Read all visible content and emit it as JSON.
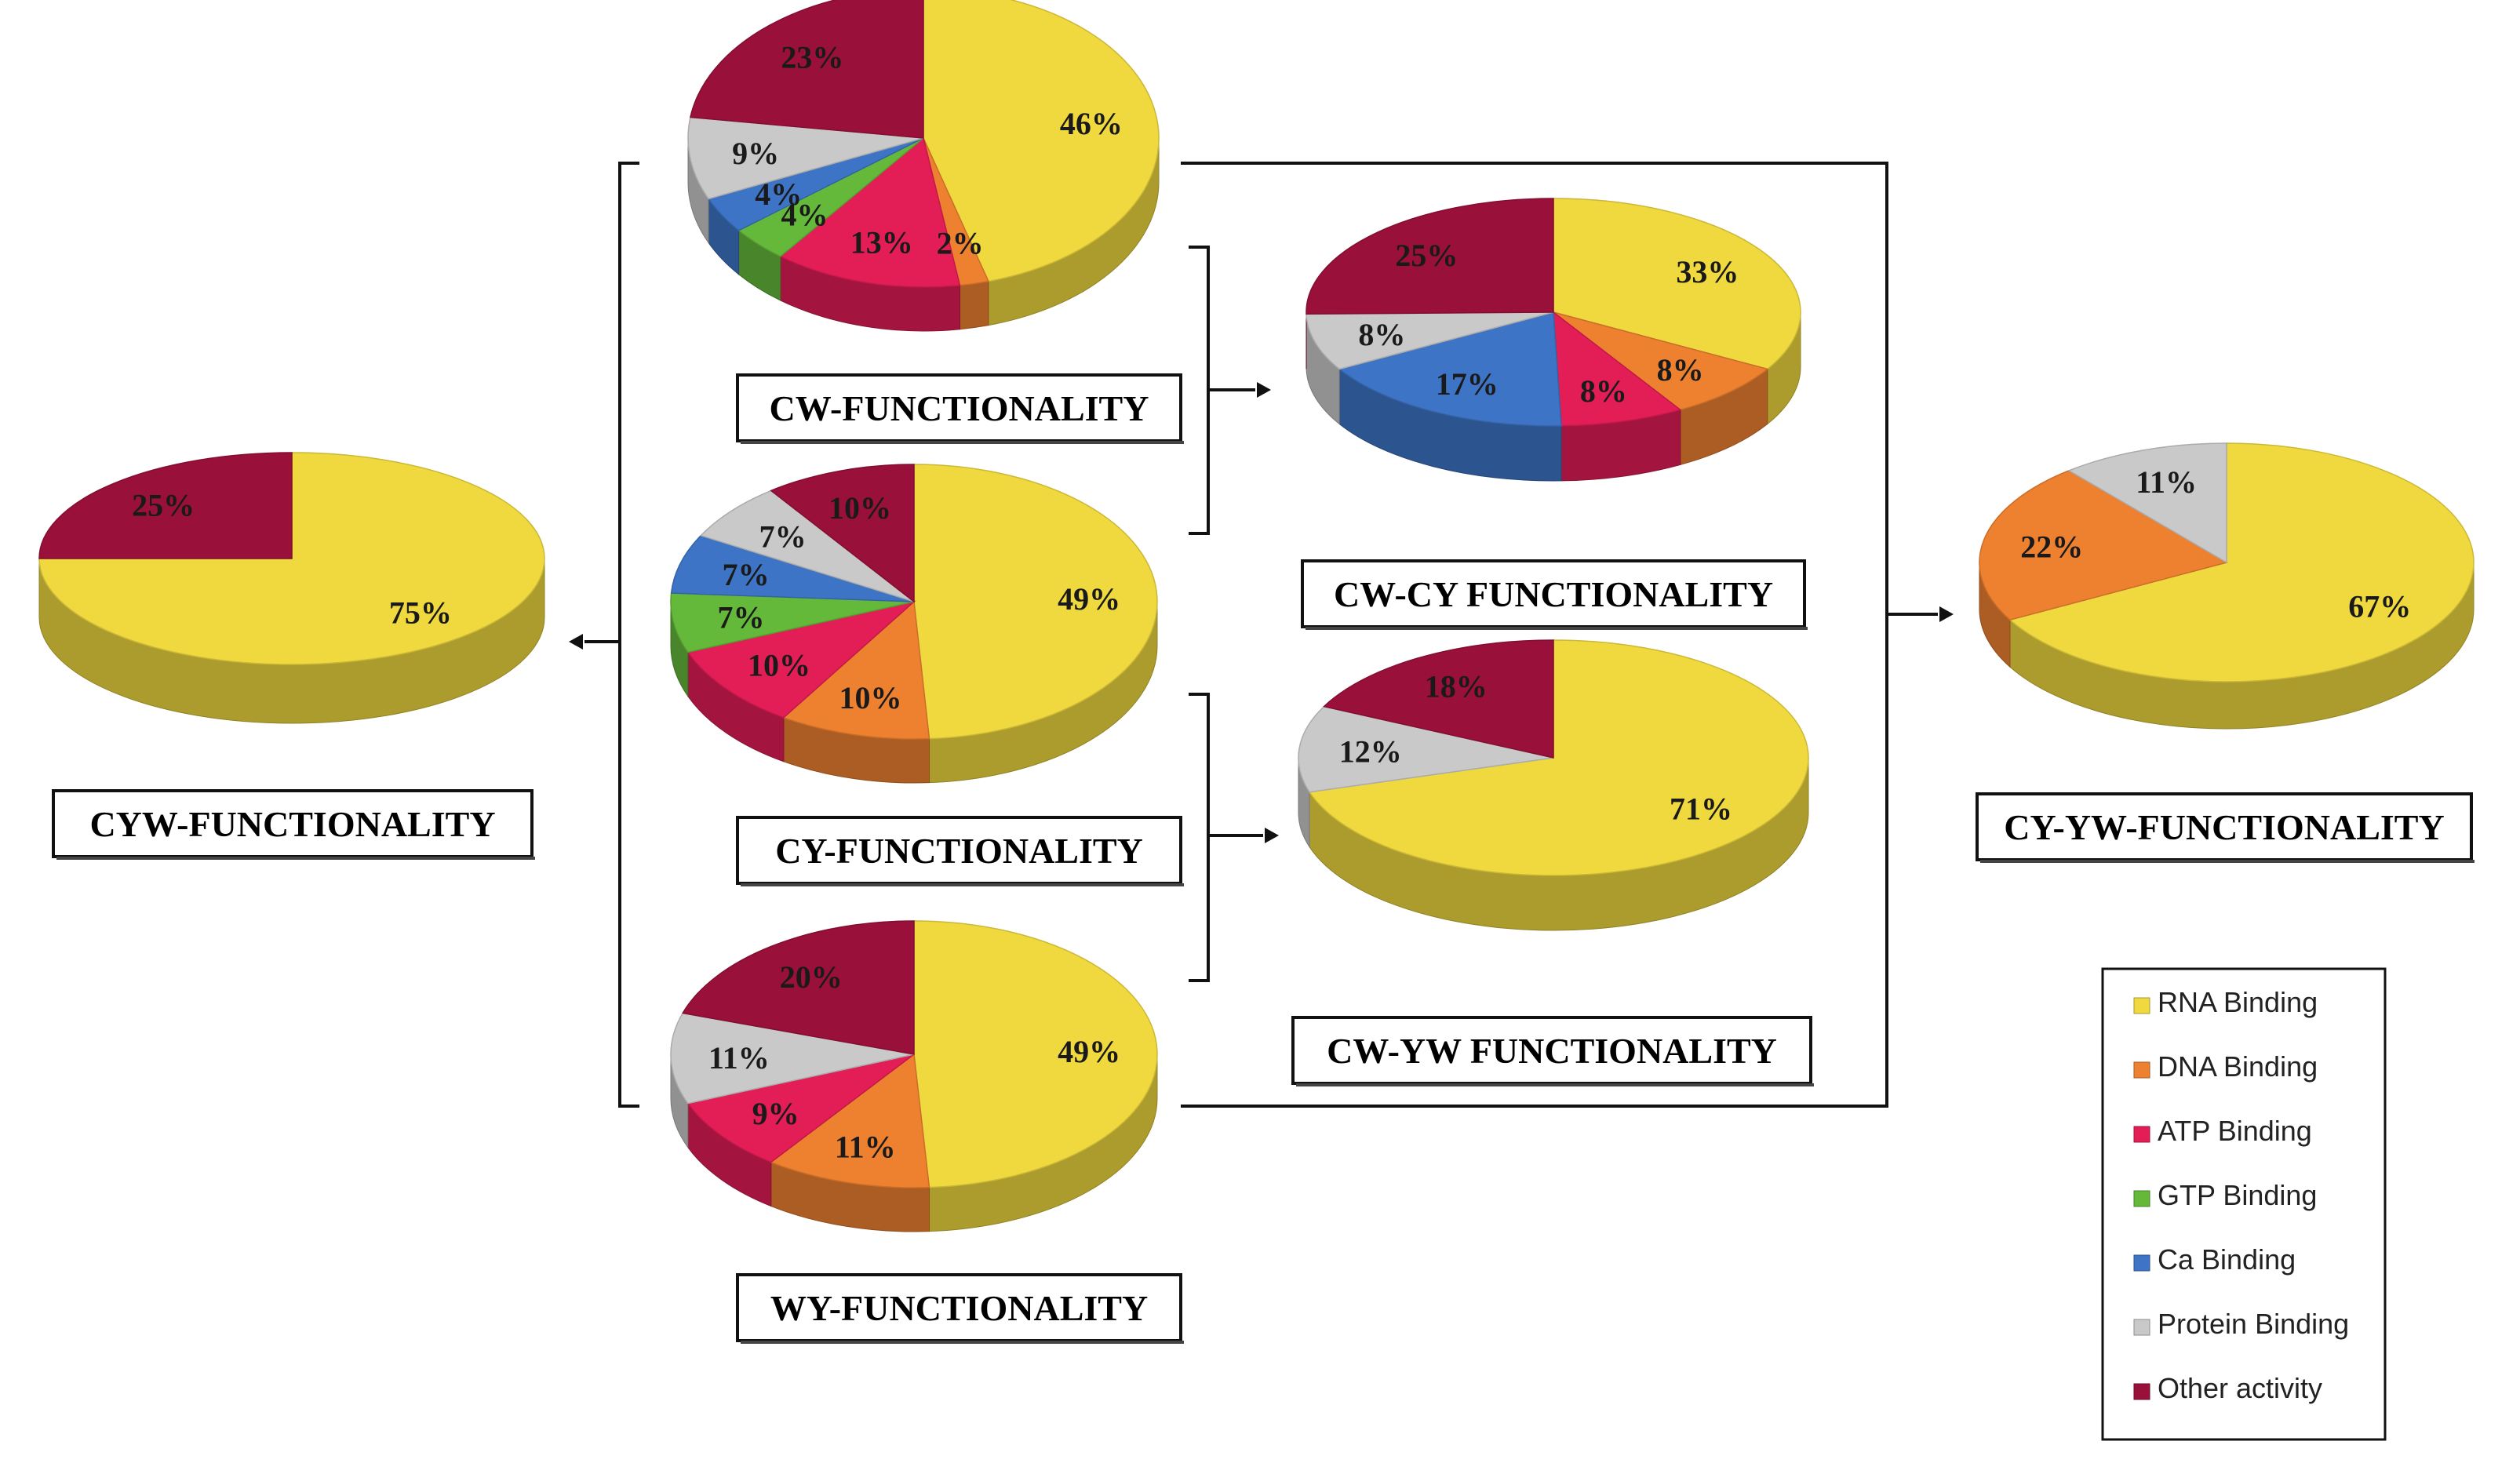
{
  "legend": [
    {
      "key": "rna",
      "label": "RNA Binding",
      "color": "#efd93f"
    },
    {
      "key": "dna",
      "label": "DNA Binding",
      "color": "#ee8130"
    },
    {
      "key": "atp",
      "label": "ATP Binding",
      "color": "#e31d56"
    },
    {
      "key": "gtp",
      "label": "GTP Binding",
      "color": "#65b93a"
    },
    {
      "key": "ca",
      "label": "Ca Binding",
      "color": "#3d74c5"
    },
    {
      "key": "protein",
      "label": "Protein Binding",
      "color": "#c9c9c9"
    },
    {
      "key": "other",
      "label": "Other activity",
      "color": "#99103a"
    }
  ],
  "chart_data": [
    {
      "id": "cw",
      "type": "pie",
      "title": "CW-FUNCTIONALITY",
      "slices": [
        {
          "key": "rna",
          "value": 46,
          "label": "46%"
        },
        {
          "key": "dna",
          "value": 2,
          "label": "2%"
        },
        {
          "key": "atp",
          "value": 13,
          "label": "13%"
        },
        {
          "key": "gtp",
          "value": 4,
          "label": "4%"
        },
        {
          "key": "ca",
          "value": 4,
          "label": "4%"
        },
        {
          "key": "protein",
          "value": 9,
          "label": "9%"
        },
        {
          "key": "other",
          "value": 23,
          "label": "23%"
        }
      ]
    },
    {
      "id": "cy",
      "type": "pie",
      "title": "CY-FUNCTIONALITY",
      "slices": [
        {
          "key": "rna",
          "value": 49,
          "label": "49%"
        },
        {
          "key": "dna",
          "value": 10,
          "label": "10%"
        },
        {
          "key": "atp",
          "value": 10,
          "label": "10%"
        },
        {
          "key": "gtp",
          "value": 7,
          "label": "7%"
        },
        {
          "key": "ca",
          "value": 7,
          "label": "7%"
        },
        {
          "key": "protein",
          "value": 7,
          "label": "7%"
        },
        {
          "key": "other",
          "value": 10,
          "label": "10%"
        }
      ]
    },
    {
      "id": "wy",
      "type": "pie",
      "title": "WY-FUNCTIONALITY",
      "slices": [
        {
          "key": "rna",
          "value": 49,
          "label": "49%"
        },
        {
          "key": "dna",
          "value": 11,
          "label": "11%"
        },
        {
          "key": "atp",
          "value": 9,
          "label": "9%"
        },
        {
          "key": "protein",
          "value": 11,
          "label": "11%"
        },
        {
          "key": "other",
          "value": 20,
          "label": "20%"
        }
      ]
    },
    {
      "id": "cwcy",
      "type": "pie",
      "title": "CW-CY FUNCTIONALITY",
      "slices": [
        {
          "key": "rna",
          "value": 33,
          "label": "33%"
        },
        {
          "key": "dna",
          "value": 8,
          "label": "8%"
        },
        {
          "key": "atp",
          "value": 8,
          "label": "8%"
        },
        {
          "key": "ca",
          "value": 17,
          "label": "17%"
        },
        {
          "key": "protein",
          "value": 8,
          "label": "8%"
        },
        {
          "key": "other",
          "value": 25,
          "label": "25%"
        }
      ]
    },
    {
      "id": "cwyw",
      "type": "pie",
      "title": "CW-YW FUNCTIONALITY",
      "slices": [
        {
          "key": "rna",
          "value": 71,
          "label": "71%"
        },
        {
          "key": "protein",
          "value": 12,
          "label": "12%"
        },
        {
          "key": "other",
          "value": 18,
          "label": "18%"
        }
      ]
    },
    {
      "id": "cyw",
      "type": "pie",
      "title": "CYW-FUNCTIONALITY",
      "slices": [
        {
          "key": "rna",
          "value": 75,
          "label": "75%"
        },
        {
          "key": "other",
          "value": 25,
          "label": "25%"
        }
      ]
    },
    {
      "id": "cyyw",
      "type": "pie",
      "title": "CY-YW-FUNCTIONALITY",
      "slices": [
        {
          "key": "rna",
          "value": 67,
          "label": "67%"
        },
        {
          "key": "dna",
          "value": 22,
          "label": "22%"
        },
        {
          "key": "protein",
          "value": 11,
          "label": "11%"
        }
      ]
    }
  ]
}
